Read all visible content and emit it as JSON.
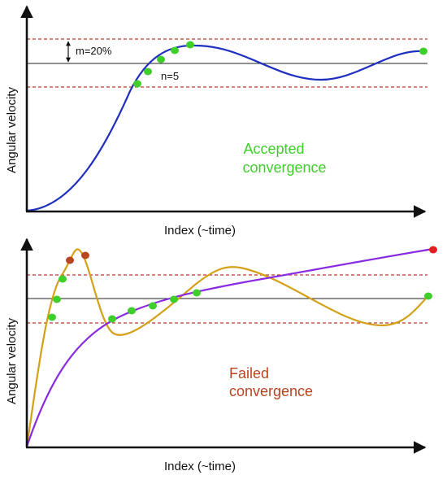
{
  "colors": {
    "axis": "#111111",
    "target_line": "#222222",
    "bound_line": "#c0392b",
    "blue_curve": "#1f2fbf",
    "purple_curve": "#8a2be2",
    "gold_curve": "#d4a017",
    "in_band_point": "#3fcf2b",
    "out_band_point": "#b8451f",
    "final_out_point": "#e02020",
    "accepted_text": "#3fcf2b",
    "failed_text": "#b8451f"
  },
  "top_panel": {
    "ylabel": "Angular velocity",
    "xlabel": "Index (~time)",
    "margin_label": "m=20%",
    "count_label": "n=5",
    "result_line1": "Accepted",
    "result_line2": "convergence"
  },
  "bottom_panel": {
    "ylabel": "Angular velocity",
    "xlabel": "Index (~time)",
    "result_line1": "Failed",
    "result_line2": "convergence"
  }
}
